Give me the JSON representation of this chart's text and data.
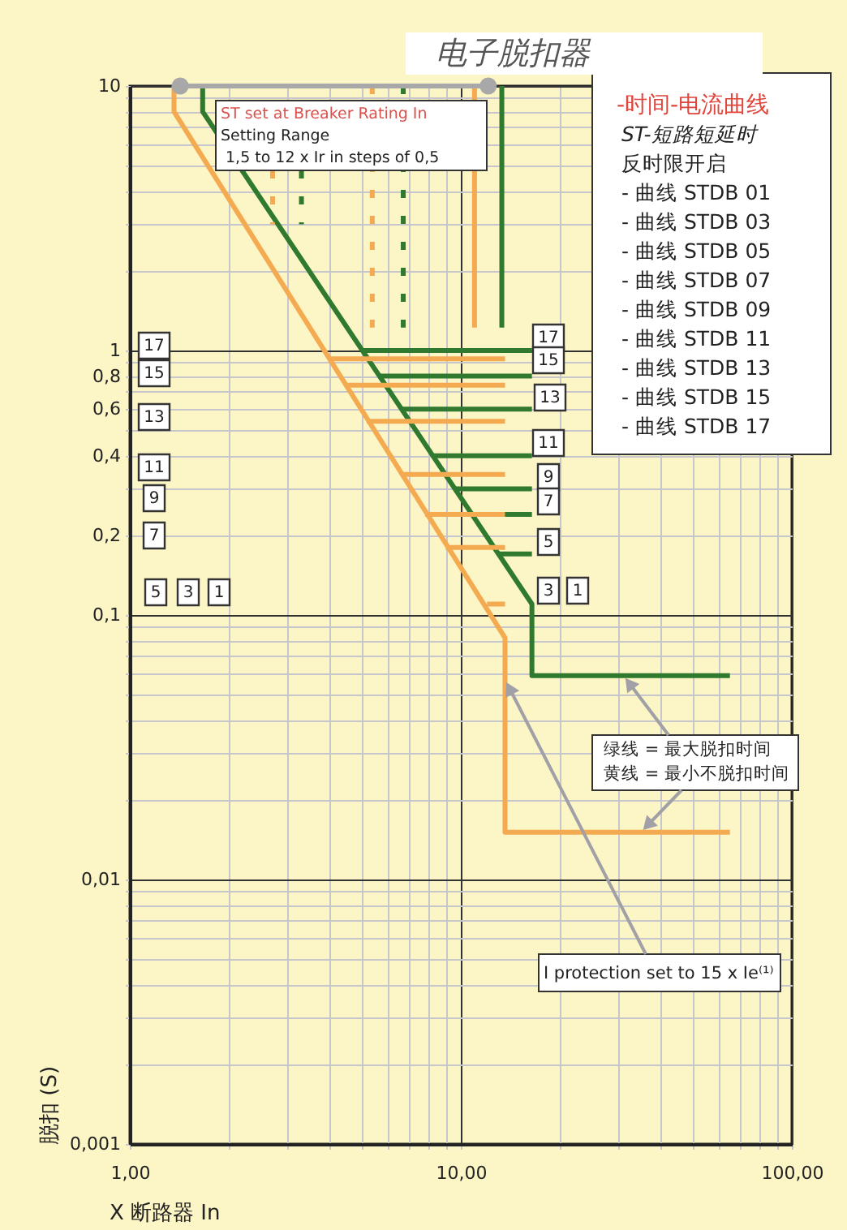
{
  "chart_data": {
    "type": "line",
    "title": "电子脱扣器",
    "xlabel": "X 断路器 In",
    "ylabel": "脱扣 (S)",
    "log": "xy",
    "grid": true,
    "xlim": [
      1,
      100
    ],
    "ylim": [
      0.001,
      10
    ],
    "xticks": [
      {
        "value": 1,
        "label": "1,00"
      },
      {
        "value": 2,
        "label": null
      },
      {
        "value": 3,
        "label": null
      },
      {
        "value": 4,
        "label": null
      },
      {
        "value": 5,
        "label": null
      },
      {
        "value": 6,
        "label": null
      },
      {
        "value": 7,
        "label": null
      },
      {
        "value": 8,
        "label": null
      },
      {
        "value": 9,
        "label": null
      },
      {
        "value": 10,
        "label": "10,00"
      },
      {
        "value": 20,
        "label": null
      },
      {
        "value": 30,
        "label": null
      },
      {
        "value": 40,
        "label": null
      },
      {
        "value": 50,
        "label": null
      },
      {
        "value": 60,
        "label": null
      },
      {
        "value": 70,
        "label": null
      },
      {
        "value": 80,
        "label": null
      },
      {
        "value": 90,
        "label": null
      },
      {
        "value": 100,
        "label": "100,00"
      }
    ],
    "yticks": [
      {
        "value": 0.001,
        "label": "0,001"
      },
      {
        "value": 0.002,
        "label": null
      },
      {
        "value": 0.003,
        "label": null
      },
      {
        "value": 0.004,
        "label": null
      },
      {
        "value": 0.005,
        "label": null
      },
      {
        "value": 0.006,
        "label": null
      },
      {
        "value": 0.007,
        "label": null
      },
      {
        "value": 0.008,
        "label": null
      },
      {
        "value": 0.009,
        "label": null
      },
      {
        "value": 0.01,
        "label": "0,01"
      },
      {
        "value": 0.02,
        "label": null
      },
      {
        "value": 0.03,
        "label": null
      },
      {
        "value": 0.04,
        "label": null
      },
      {
        "value": 0.05,
        "label": null
      },
      {
        "value": 0.06,
        "label": null
      },
      {
        "value": 0.07,
        "label": null
      },
      {
        "value": 0.08,
        "label": null
      },
      {
        "value": 0.09,
        "label": null
      },
      {
        "value": 0.1,
        "label": "0,1"
      },
      {
        "value": 0.2,
        "label": "0,2"
      },
      {
        "value": 0.3,
        "label": null
      },
      {
        "value": 0.4,
        "label": "0,4"
      },
      {
        "value": 0.5,
        "label": null
      },
      {
        "value": 0.6,
        "label": "0,6"
      },
      {
        "value": 0.7,
        "label": null
      },
      {
        "value": 0.8,
        "label": "0,8"
      },
      {
        "value": 0.9,
        "label": null
      },
      1,
      {
        "value": 2,
        "label": null
      },
      {
        "value": 3,
        "label": null
      },
      {
        "value": 4,
        "label": null
      },
      {
        "value": 5,
        "label": null
      },
      {
        "value": 6,
        "label": null
      },
      {
        "value": 7,
        "label": null
      },
      {
        "value": 8,
        "label": null
      },
      {
        "value": 9,
        "label": null
      },
      10
    ],
    "series": [
      {
        "color": "#f4aa50",
        "x": [
          1.36,
          1.36,
          13.6,
          13.6,
          65
        ],
        "values": [
          10,
          8.0,
          0.082,
          0.0151,
          0.0151
        ]
      },
      {
        "color": "#2f7a2f",
        "x": [
          1.66,
          1.66,
          16.4,
          16.4,
          65
        ],
        "values": [
          10,
          8.0,
          0.11,
          0.059,
          0.059
        ]
      },
      {
        "color": "#2f7a2f",
        "x": [
          5.0,
          16.4
        ],
        "values": [
          1,
          1
        ]
      },
      {
        "color": "#2f7a2f",
        "x": [
          5.7,
          16.4
        ],
        "values": [
          0.8,
          0.8
        ]
      },
      {
        "color": "#2f7a2f",
        "x": [
          6.6,
          16.4
        ],
        "values": [
          0.6,
          0.6
        ]
      },
      {
        "color": "#2f7a2f",
        "x": [
          8.2,
          16.4
        ],
        "values": [
          0.4,
          0.4
        ]
      },
      {
        "color": "#2f7a2f",
        "x": [
          9.6,
          16.4
        ],
        "values": [
          0.3,
          0.3
        ]
      },
      {
        "color": "#2f7a2f",
        "x": [
          10.8,
          16.4
        ],
        "values": [
          0.24,
          0.24
        ]
      },
      {
        "color": "#2f7a2f",
        "x": [
          13.0,
          16.4
        ],
        "values": [
          0.17,
          0.17
        ]
      },
      {
        "color": "#f4aa50",
        "x": [
          4.0,
          13.6
        ],
        "values": [
          0.93,
          0.93
        ]
      },
      {
        "color": "#f4aa50",
        "x": [
          4.5,
          13.6
        ],
        "values": [
          0.74,
          0.74
        ]
      },
      {
        "color": "#f4aa50",
        "x": [
          5.2,
          13.6
        ],
        "values": [
          0.54,
          0.54
        ]
      },
      {
        "color": "#f4aa50",
        "x": [
          6.6,
          13.6
        ],
        "values": [
          0.34,
          0.34
        ]
      },
      {
        "color": "#f4aa50",
        "x": [
          7.8,
          13.6
        ],
        "values": [
          0.24,
          0.24
        ]
      },
      {
        "color": "#f4aa50",
        "x": [
          9.0,
          13.6
        ],
        "values": [
          0.18,
          0.18
        ]
      },
      {
        "color": "#f4aa50",
        "x": [
          12.0,
          13.6
        ],
        "values": [
          0.11,
          0.11
        ]
      },
      {
        "color": "#f4aa50",
        "line_style": "dashed",
        "x": [
          2.7,
          2.7
        ],
        "values": [
          4.8,
          3.0
        ]
      },
      {
        "color": "#2f7a2f",
        "line_style": "dashed",
        "x": [
          3.3,
          3.3
        ],
        "values": [
          4.8,
          3.0
        ]
      },
      {
        "color": "#f4aa50",
        "line_style": "dashed",
        "x": [
          5.4,
          5.4
        ],
        "values": [
          10,
          1.22
        ]
      },
      {
        "color": "#2f7a2f",
        "line_style": "dashed",
        "x": [
          6.7,
          6.7
        ],
        "values": [
          10,
          1.22
        ]
      },
      {
        "color": "#f4aa50",
        "x": [
          11,
          11
        ],
        "values": [
          10,
          1.22
        ]
      },
      {
        "color": "#2f7a2f",
        "x": [
          13.3,
          13.3
        ],
        "values": [
          10,
          1.22
        ]
      },
      {
        "color": "#a8a8a8",
        "marker": "circle",
        "x": [
          1.42,
          12.1
        ],
        "values": [
          10,
          10
        ]
      }
    ],
    "annotations": [
      "ST set at Breaker Rating In",
      "Setting Range",
      "1,5 to 12 x Ir in steps of 0,5",
      "-时间-电流曲线",
      "ST-短路短延时",
      "反时限开启",
      "- 曲线 STDB 01",
      "- 曲线 STDB 03",
      "- 曲线 STDB 05",
      "- 曲线 STDB 07",
      "- 曲线 STDB 09",
      "- 曲线 STDB 11",
      "- 曲线 STDB 13",
      "- 曲线 STDB 15",
      "- 曲线 STDB 17",
      {
        "text": "绿线 = 最大脱扣时间",
        "x": 31,
        "y": 0.059
      },
      {
        "text": "黄线 = 最小不脱扣时间",
        "x": 35,
        "y": 0.0151
      },
      {
        "text": "I   protection set to 15 x Ie⁽¹⁾",
        "x": 13.6,
        "y": 0.057
      },
      "17",
      "15",
      "13",
      "11",
      "9",
      "7",
      "5",
      "3",
      "1",
      "17",
      "15",
      "13",
      "11",
      "9",
      "7",
      "5",
      "3",
      "1"
    ]
  }
}
